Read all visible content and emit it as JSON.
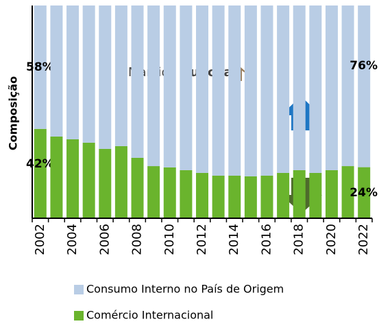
{
  "chart_data": {
    "type": "stacked_bar",
    "y_label": "Composição",
    "watermark": {
      "first": "Marcio",
      "second": "Funchal"
    },
    "categories": [
      "2002",
      null,
      "2004",
      null,
      "2006",
      null,
      "2008",
      null,
      "2010",
      null,
      "2012",
      null,
      "2014",
      null,
      "2016",
      null,
      "2018",
      null,
      "2020",
      null,
      "2022"
    ],
    "ylim": [
      0,
      100
    ],
    "series": [
      {
        "name": "Comércio Internacional",
        "color": "#6ab42d",
        "values": [
          42,
          38.4,
          37.1,
          35.5,
          32.6,
          33.9,
          28.4,
          24.5,
          23.9,
          22.6,
          21.3,
          20,
          20,
          19.7,
          20,
          21.3,
          22.6,
          21.3,
          22.6,
          24.5,
          24
        ],
        "value_labels": [
          "42%",
          null,
          null,
          null,
          null,
          null,
          null,
          null,
          null,
          null,
          null,
          null,
          null,
          null,
          null,
          null,
          null,
          null,
          null,
          null,
          "24%"
        ]
      },
      {
        "name": "Consumo Interno no País de Origem",
        "color": "#b9cde5",
        "values": [
          58,
          61.6,
          62.9,
          64.5,
          67.4,
          66.1,
          71.6,
          75.5,
          76.1,
          77.4,
          78.7,
          80,
          80,
          80.3,
          80,
          78.7,
          77.4,
          78.7,
          77.4,
          75.5,
          76
        ],
        "value_labels": [
          "58%",
          null,
          null,
          null,
          null,
          null,
          null,
          null,
          null,
          null,
          null,
          null,
          null,
          null,
          null,
          null,
          null,
          null,
          null,
          null,
          "76%"
        ]
      }
    ]
  }
}
